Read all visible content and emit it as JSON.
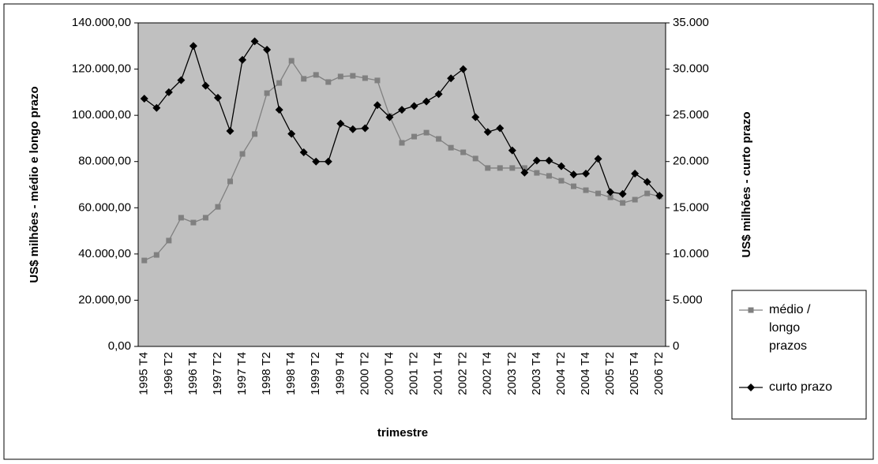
{
  "chart_data": {
    "type": "line",
    "x_label": "trimestre",
    "y_label": "US$ milhões - médio e longo prazo",
    "y2_label": "US$ milhões - curto prazo",
    "categories": [
      "1995 T4",
      null,
      "1996 T2",
      null,
      "1996 T4",
      null,
      "1997 T2",
      null,
      "1997 T4",
      null,
      "1998 T2",
      null,
      "1998 T4",
      null,
      "1999 T2",
      null,
      "1999 T4",
      null,
      "2000 T2",
      null,
      "2000 T4",
      null,
      "2001 T2",
      null,
      "2001 T4",
      null,
      "2002 T2",
      null,
      "2002 T4",
      null,
      "2003 T2",
      null,
      "2003 T4",
      null,
      "2004 T2",
      null,
      "2004 T4",
      null,
      "2005 T2",
      null,
      "2005 T4",
      null,
      "2006 T2"
    ],
    "series": [
      {
        "name": "médio / longo prazos",
        "color": "#808080",
        "marker": "square",
        "values": [
          37200,
          39600,
          45800,
          55700,
          53600,
          55700,
          60400,
          71400,
          83300,
          91900,
          109600,
          114000,
          123600,
          115800,
          117500,
          114400,
          116800,
          117100,
          116100,
          115100,
          99700,
          88100,
          90800,
          92500,
          89800,
          86000,
          84000,
          81300,
          77200,
          77200,
          77200,
          77200,
          75100,
          73800,
          71700,
          69300,
          67600,
          66200,
          64500,
          62100,
          63500,
          66200,
          64900
        ]
      },
      {
        "name": "curto prazo",
        "color": "#000000",
        "marker": "diamond",
        "axis": "y2",
        "values": [
          26800,
          25800,
          27500,
          28800,
          32500,
          28200,
          26900,
          23300,
          31000,
          33000,
          32100,
          25600,
          23000,
          21000,
          20000,
          20000,
          24100,
          23500,
          23600,
          26100,
          24800,
          25600,
          26000,
          26500,
          27300,
          29000,
          30000,
          24800,
          23200,
          23600,
          21200,
          18800,
          20100,
          20100,
          19500,
          18600,
          18700,
          20300,
          16700,
          16500,
          18700,
          17800,
          16300
        ]
      }
    ],
    "ylim": [
      0,
      140000
    ],
    "yticks": [
      {
        "value": 0,
        "label": "0,00"
      },
      {
        "value": 20000,
        "label": "20.000,00"
      },
      {
        "value": 40000,
        "label": "40.000,00"
      },
      {
        "value": 60000,
        "label": "60.000,00"
      },
      {
        "value": 80000,
        "label": "80.000,00"
      },
      {
        "value": 100000,
        "label": "100.000,00"
      },
      {
        "value": 120000,
        "label": "120.000,00"
      },
      {
        "value": 140000,
        "label": "140.000,00"
      }
    ],
    "y2lim": [
      0,
      35000
    ],
    "y2ticks": [
      0,
      {
        "value": 5000,
        "label": "5.000"
      },
      {
        "value": 10000,
        "label": "10.000"
      },
      {
        "value": 15000,
        "label": "15.000"
      },
      {
        "value": 20000,
        "label": "20.000"
      },
      {
        "value": 25000,
        "label": "25.000"
      },
      {
        "value": 30000,
        "label": "30.000"
      },
      {
        "value": 35000,
        "label": "35.000"
      }
    ],
    "plot_background": "#c0c0c0",
    "legend": "right"
  }
}
